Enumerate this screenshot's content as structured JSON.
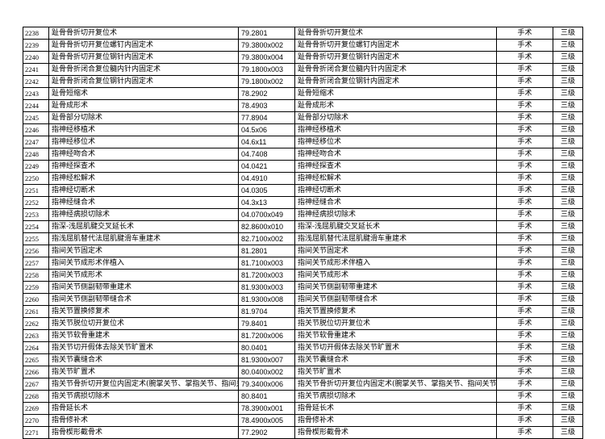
{
  "rows": [
    {
      "no": "2238",
      "name": "趾骨骨折切开复位术",
      "code": "79.2801",
      "name2": "趾骨骨折切开复位术",
      "type": "手术",
      "level": "三级"
    },
    {
      "no": "2239",
      "name": "趾骨骨折切开复位螺钉内固定术",
      "code": "79.3800x002",
      "name2": "趾骨骨折切开复位螺钉内固定术",
      "type": "手术",
      "level": "三级"
    },
    {
      "no": "2240",
      "name": "趾骨骨折切开复位钢针内固定术",
      "code": "79.3800x004",
      "name2": "趾骨骨折切开复位钢针内固定术",
      "type": "手术",
      "level": "三级"
    },
    {
      "no": "2241",
      "name": "趾骨骨折闭合复位髓内针内固定术",
      "code": "79.1800x003",
      "name2": "趾骨骨折闭合复位髓内针内固定术",
      "type": "手术",
      "level": "三级"
    },
    {
      "no": "2242",
      "name": "趾骨骨折闭合复位钢针内固定术",
      "code": "79.1800x002",
      "name2": "趾骨骨折闭合复位钢针内固定术",
      "type": "手术",
      "level": "三级"
    },
    {
      "no": "2243",
      "name": "趾骨短缩术",
      "code": "78.2902",
      "name2": "趾骨短缩术",
      "type": "手术",
      "level": "三级"
    },
    {
      "no": "2244",
      "name": "趾骨成形术",
      "code": "78.4903",
      "name2": "趾骨成形术",
      "type": "手术",
      "level": "三级"
    },
    {
      "no": "2245",
      "name": "趾骨部分切除术",
      "code": "77.8904",
      "name2": "趾骨部分切除术",
      "type": "手术",
      "level": "三级"
    },
    {
      "no": "2246",
      "name": "指神经移植术",
      "code": "04.5x06",
      "name2": "指神经移植术",
      "type": "手术",
      "level": "三级"
    },
    {
      "no": "2247",
      "name": "指神经移位术",
      "code": "04.6x11",
      "name2": "指神经移位术",
      "type": "手术",
      "level": "三级"
    },
    {
      "no": "2248",
      "name": "指神经吻合术",
      "code": "04.7408",
      "name2": "指神经吻合术",
      "type": "手术",
      "level": "三级"
    },
    {
      "no": "2249",
      "name": "指神经探查术",
      "code": "04.0421",
      "name2": "指神经探查术",
      "type": "手术",
      "level": "三级"
    },
    {
      "no": "2250",
      "name": "指神经松解术",
      "code": "04.4910",
      "name2": "指神经松解术",
      "type": "手术",
      "level": "三级"
    },
    {
      "no": "2251",
      "name": "指神经切断术",
      "code": "04.0305",
      "name2": "指神经切断术",
      "type": "手术",
      "level": "三级"
    },
    {
      "no": "2252",
      "name": "指神经缝合术",
      "code": "04.3x13",
      "name2": "指神经缝合术",
      "type": "手术",
      "level": "三级"
    },
    {
      "no": "2253",
      "name": "指神经病损切除术",
      "code": "04.0700x049",
      "name2": "指神经病损切除术",
      "type": "手术",
      "level": "三级"
    },
    {
      "no": "2254",
      "name": "指深-浅屈肌腱交叉延长术",
      "code": "82.8600x010",
      "name2": "指深-浅屈肌腱交叉延长术",
      "type": "手术",
      "level": "三级"
    },
    {
      "no": "2255",
      "name": "指浅屈肌替代法屈肌腱滑车重建术",
      "code": "82.7100x002",
      "name2": "指浅屈肌替代法屈肌腱滑车重建术",
      "type": "手术",
      "level": "三级"
    },
    {
      "no": "2256",
      "name": "指间关节固定术",
      "code": "81.2801",
      "name2": "指间关节固定术",
      "type": "手术",
      "level": "三级"
    },
    {
      "no": "2257",
      "name": "指间关节成形术伴植入",
      "code": "81.7100x003",
      "name2": "指间关节成形术伴植入",
      "type": "手术",
      "level": "三级"
    },
    {
      "no": "2258",
      "name": "指间关节成形术",
      "code": "81.7200x003",
      "name2": "指间关节成形术",
      "type": "手术",
      "level": "三级"
    },
    {
      "no": "2259",
      "name": "指间关节侧副韧带重建术",
      "code": "81.9300x003",
      "name2": "指间关节侧副韧带重建术",
      "type": "手术",
      "level": "三级"
    },
    {
      "no": "2260",
      "name": "指间关节侧副韧带缝合术",
      "code": "81.9300x008",
      "name2": "指间关节侧副韧带缝合术",
      "type": "手术",
      "level": "三级"
    },
    {
      "no": "2261",
      "name": "指关节置换修复术",
      "code": "81.9704",
      "name2": "指关节置换修复术",
      "type": "手术",
      "level": "三级"
    },
    {
      "no": "2262",
      "name": "指关节脱位切开复位术",
      "code": "79.8401",
      "name2": "指关节脱位切开复位术",
      "type": "手术",
      "level": "三级"
    },
    {
      "no": "2263",
      "name": "指关节软骨重建术",
      "code": "81.7200x006",
      "name2": "指关节软骨重建术",
      "type": "手术",
      "level": "三级"
    },
    {
      "no": "2264",
      "name": "指关节切开假体去除关节旷置术",
      "code": "80.0401",
      "name2": "指关节切开假体去除关节旷置术",
      "type": "手术",
      "level": "三级"
    },
    {
      "no": "2265",
      "name": "指关节囊缝合术",
      "code": "81.9300x007",
      "name2": "指关节囊缝合术",
      "type": "手术",
      "level": "三级"
    },
    {
      "no": "2266",
      "name": "指关节旷置术",
      "code": "80.0400x002",
      "name2": "指关节旷置术",
      "type": "手术",
      "level": "三级"
    },
    {
      "no": "2267",
      "name": "指关节骨折切开复位内固定术(腕掌关节、掌指关节、指间关",
      "code": "79.3400x006",
      "name2": "指关节骨折切开复位内固定术(腕掌关节、掌指关节、指间关节)",
      "type": "手术",
      "level": "三级"
    },
    {
      "no": "2268",
      "name": "指关节病损切除术",
      "code": "80.8401",
      "name2": "指关节病损切除术",
      "type": "手术",
      "level": "三级"
    },
    {
      "no": "2269",
      "name": "指骨延长术",
      "code": "78.3900x001",
      "name2": "指骨延长术",
      "type": "手术",
      "level": "三级"
    },
    {
      "no": "2270",
      "name": "指骨修补术",
      "code": "78.4900x005",
      "name2": "指骨修补术",
      "type": "手术",
      "level": "三级"
    },
    {
      "no": "2271",
      "name": "指骨楔形截骨术",
      "code": "77.2902",
      "name2": "指骨楔形截骨术",
      "type": "手术",
      "level": "三级"
    }
  ]
}
